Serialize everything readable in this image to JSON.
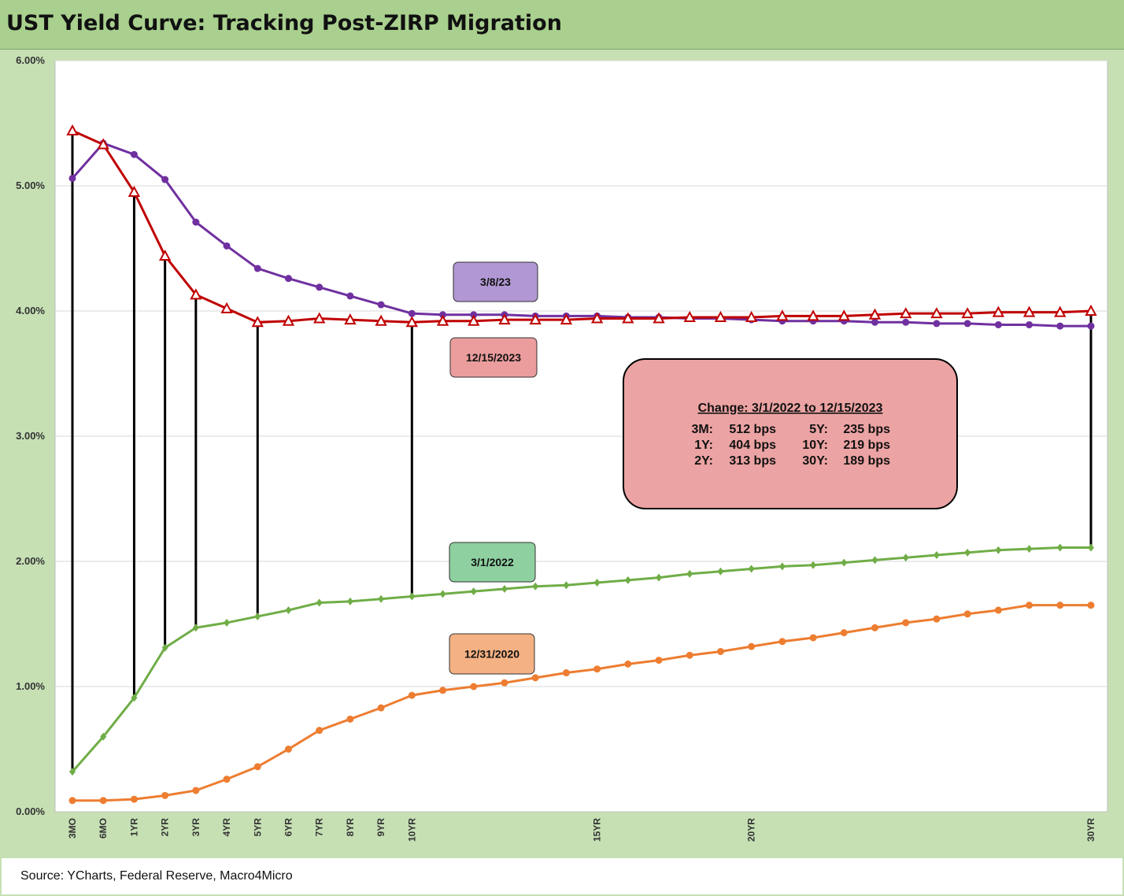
{
  "title": "UST Yield Curve: Tracking Post-ZIRP Migration",
  "source": "Source: YCharts, Federal Reserve, Macro4Micro",
  "chart_data": {
    "type": "line",
    "title": "UST Yield Curve: Tracking Post-ZIRP Migration",
    "ylim": [
      0,
      6
    ],
    "y_ticks": [
      "0.00%",
      "1.00%",
      "2.00%",
      "3.00%",
      "4.00%",
      "5.00%",
      "6.00%"
    ],
    "x_labels": [
      "3MO",
      "6MO",
      "1YR",
      "2YR",
      "3YR",
      "4YR",
      "5YR",
      "6YR",
      "7YR",
      "8YR",
      "9YR",
      "10YR",
      "",
      "",
      "",
      "",
      "",
      "15YR",
      "",
      "",
      "",
      "",
      "20YR",
      "",
      "",
      "",
      "",
      "",
      "",
      "",
      "",
      "",
      "",
      "30YR"
    ],
    "grid": true,
    "series": [
      {
        "name": "3/8/23",
        "color": "#7030a0",
        "marker": "circle",
        "label_color": "#b197d3",
        "values": [
          5.06,
          5.34,
          5.25,
          5.05,
          4.71,
          4.52,
          4.34,
          4.26,
          4.19,
          4.12,
          4.05,
          3.98,
          3.97,
          3.97,
          3.97,
          3.96,
          3.96,
          3.96,
          3.95,
          3.95,
          3.94,
          3.94,
          3.93,
          3.92,
          3.92,
          3.92,
          3.91,
          3.91,
          3.9,
          3.9,
          3.89,
          3.89,
          3.88,
          3.88
        ]
      },
      {
        "name": "12/15/2023",
        "color": "#c00000",
        "marker": "triangle",
        "label_color": "#eb9d9d",
        "values": [
          5.44,
          5.33,
          4.95,
          4.44,
          4.13,
          4.02,
          3.91,
          3.92,
          3.94,
          3.93,
          3.92,
          3.91,
          3.92,
          3.92,
          3.93,
          3.93,
          3.93,
          3.94,
          3.94,
          3.94,
          3.95,
          3.95,
          3.95,
          3.96,
          3.96,
          3.96,
          3.97,
          3.98,
          3.98,
          3.98,
          3.99,
          3.99,
          3.99,
          4.0
        ]
      },
      {
        "name": "3/1/2022",
        "color": "#70ad47",
        "marker": "diamond",
        "label_color": "#8ed0a0",
        "values": [
          0.32,
          0.6,
          0.91,
          1.31,
          1.47,
          1.51,
          1.56,
          1.61,
          1.67,
          1.68,
          1.7,
          1.72,
          1.74,
          1.76,
          1.78,
          1.8,
          1.81,
          1.83,
          1.85,
          1.87,
          1.9,
          1.92,
          1.94,
          1.96,
          1.97,
          1.99,
          2.01,
          2.03,
          2.05,
          2.07,
          2.09,
          2.1,
          2.11,
          2.11
        ]
      },
      {
        "name": "12/31/2020",
        "color": "#ed7d31",
        "marker": "circle",
        "label_color": "#f4b183",
        "values": [
          0.09,
          0.09,
          0.1,
          0.13,
          0.17,
          0.26,
          0.36,
          0.5,
          0.65,
          0.74,
          0.83,
          0.93,
          0.97,
          1.0,
          1.03,
          1.07,
          1.11,
          1.14,
          1.18,
          1.21,
          1.25,
          1.28,
          1.32,
          1.36,
          1.39,
          1.43,
          1.47,
          1.51,
          1.54,
          1.58,
          1.61,
          1.65,
          1.65,
          1.65
        ]
      }
    ],
    "change_bars_index": [
      0,
      2,
      3,
      4,
      6,
      11,
      33
    ],
    "change_box": {
      "heading": "Change: 3/1/2022 to 12/15/2023",
      "rows": [
        [
          "3M:",
          "512 bps",
          "5Y:",
          "235 bps"
        ],
        [
          "1Y:",
          "404 bps",
          "10Y:",
          "219 bps"
        ],
        [
          "2Y:",
          "313 bps",
          "30Y:",
          "189 bps"
        ]
      ],
      "fill": "#eca3a3"
    }
  }
}
